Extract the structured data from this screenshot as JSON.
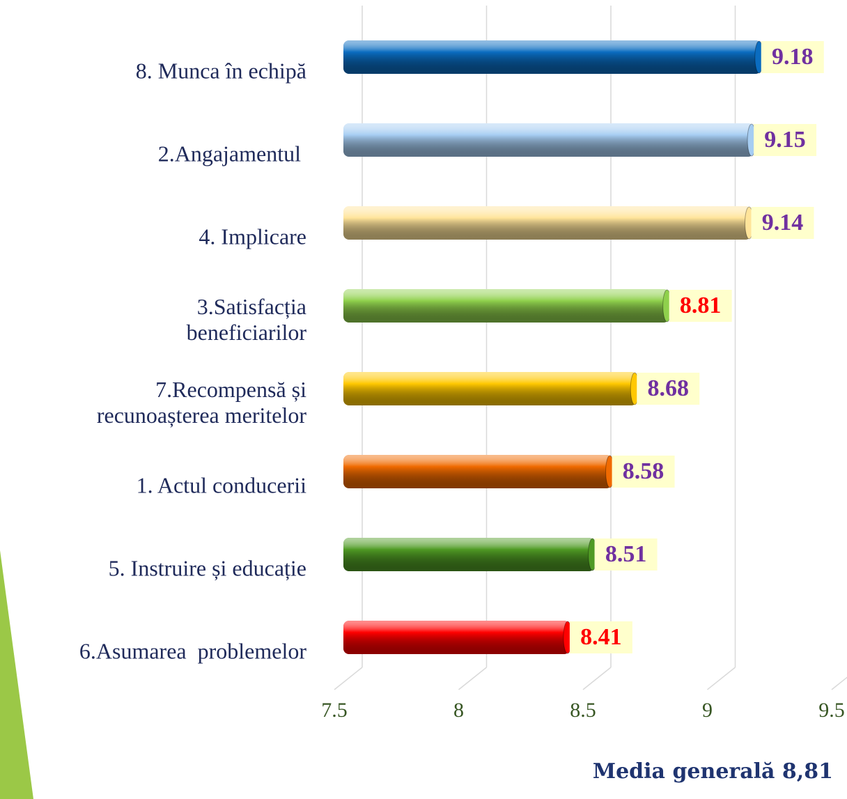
{
  "chart_data": {
    "type": "bar",
    "orientation": "horizontal",
    "categories": [
      "8. Munca în echipă",
      "2.Angajamentul ",
      "4. Implicare",
      "3.Satisfacția\nbeneficiarilor",
      "7.Recompensă și\nrecunoașterea meritelor",
      "1. Actul conducerii",
      "5. Instruire și educație",
      "6.Asumarea  problemelor"
    ],
    "values": [
      9.18,
      9.15,
      9.14,
      8.81,
      8.68,
      8.58,
      8.51,
      8.41
    ],
    "colors": [
      "#0a6cc0",
      "#a6cdf2",
      "#ffe49a",
      "#8fd04c",
      "#ffc800",
      "#f06a00",
      "#4f9a24",
      "#ff0000"
    ],
    "value_label_colors": [
      "#7030a0",
      "#7030a0",
      "#7030a0",
      "#ff0000",
      "#7030a0",
      "#7030a0",
      "#7030a0",
      "#ff0000"
    ],
    "xlim": [
      7.5,
      9.5
    ],
    "xticks": [
      7.5,
      8,
      8.5,
      9,
      9.5
    ],
    "grid": true,
    "annotation": "Media generală 8,81"
  }
}
